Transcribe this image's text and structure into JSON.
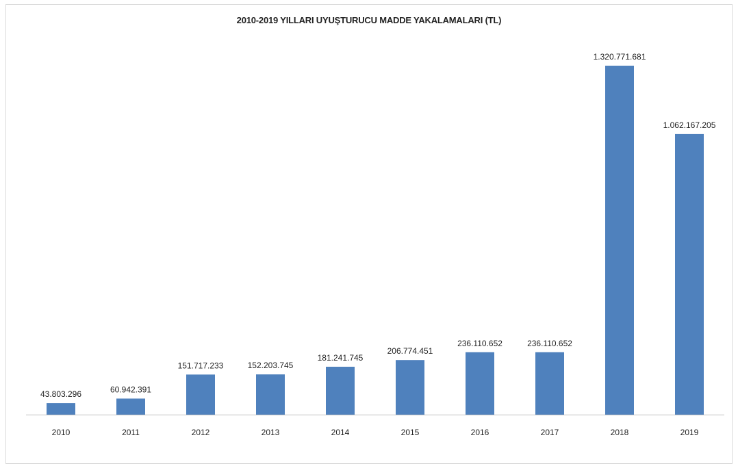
{
  "chart_data": {
    "type": "bar",
    "title": "2010-2019 YILLARI UYUŞTURUCU MADDE YAKALAMALARI (TL)",
    "categories": [
      "2010",
      "2011",
      "2012",
      "2013",
      "2014",
      "2015",
      "2016",
      "2017",
      "2018",
      "2019"
    ],
    "values": [
      43803296,
      60942391,
      151717233,
      152203745,
      181241745,
      206774451,
      236110652,
      236110652,
      1320771681,
      1062167205
    ],
    "data_labels": [
      "43.803.296",
      "60.942.391",
      "151.717.233",
      "152.203.745",
      "181.241.745",
      "206.774.451",
      "236.110.652",
      "236.110.652",
      "1.320.771.681",
      "1.062.167.205"
    ],
    "ylim": [
      0,
      1320771681
    ],
    "grid": false,
    "legend": "none",
    "bar_color": "#4f81bd",
    "axis_color": "#bfbfbf"
  }
}
